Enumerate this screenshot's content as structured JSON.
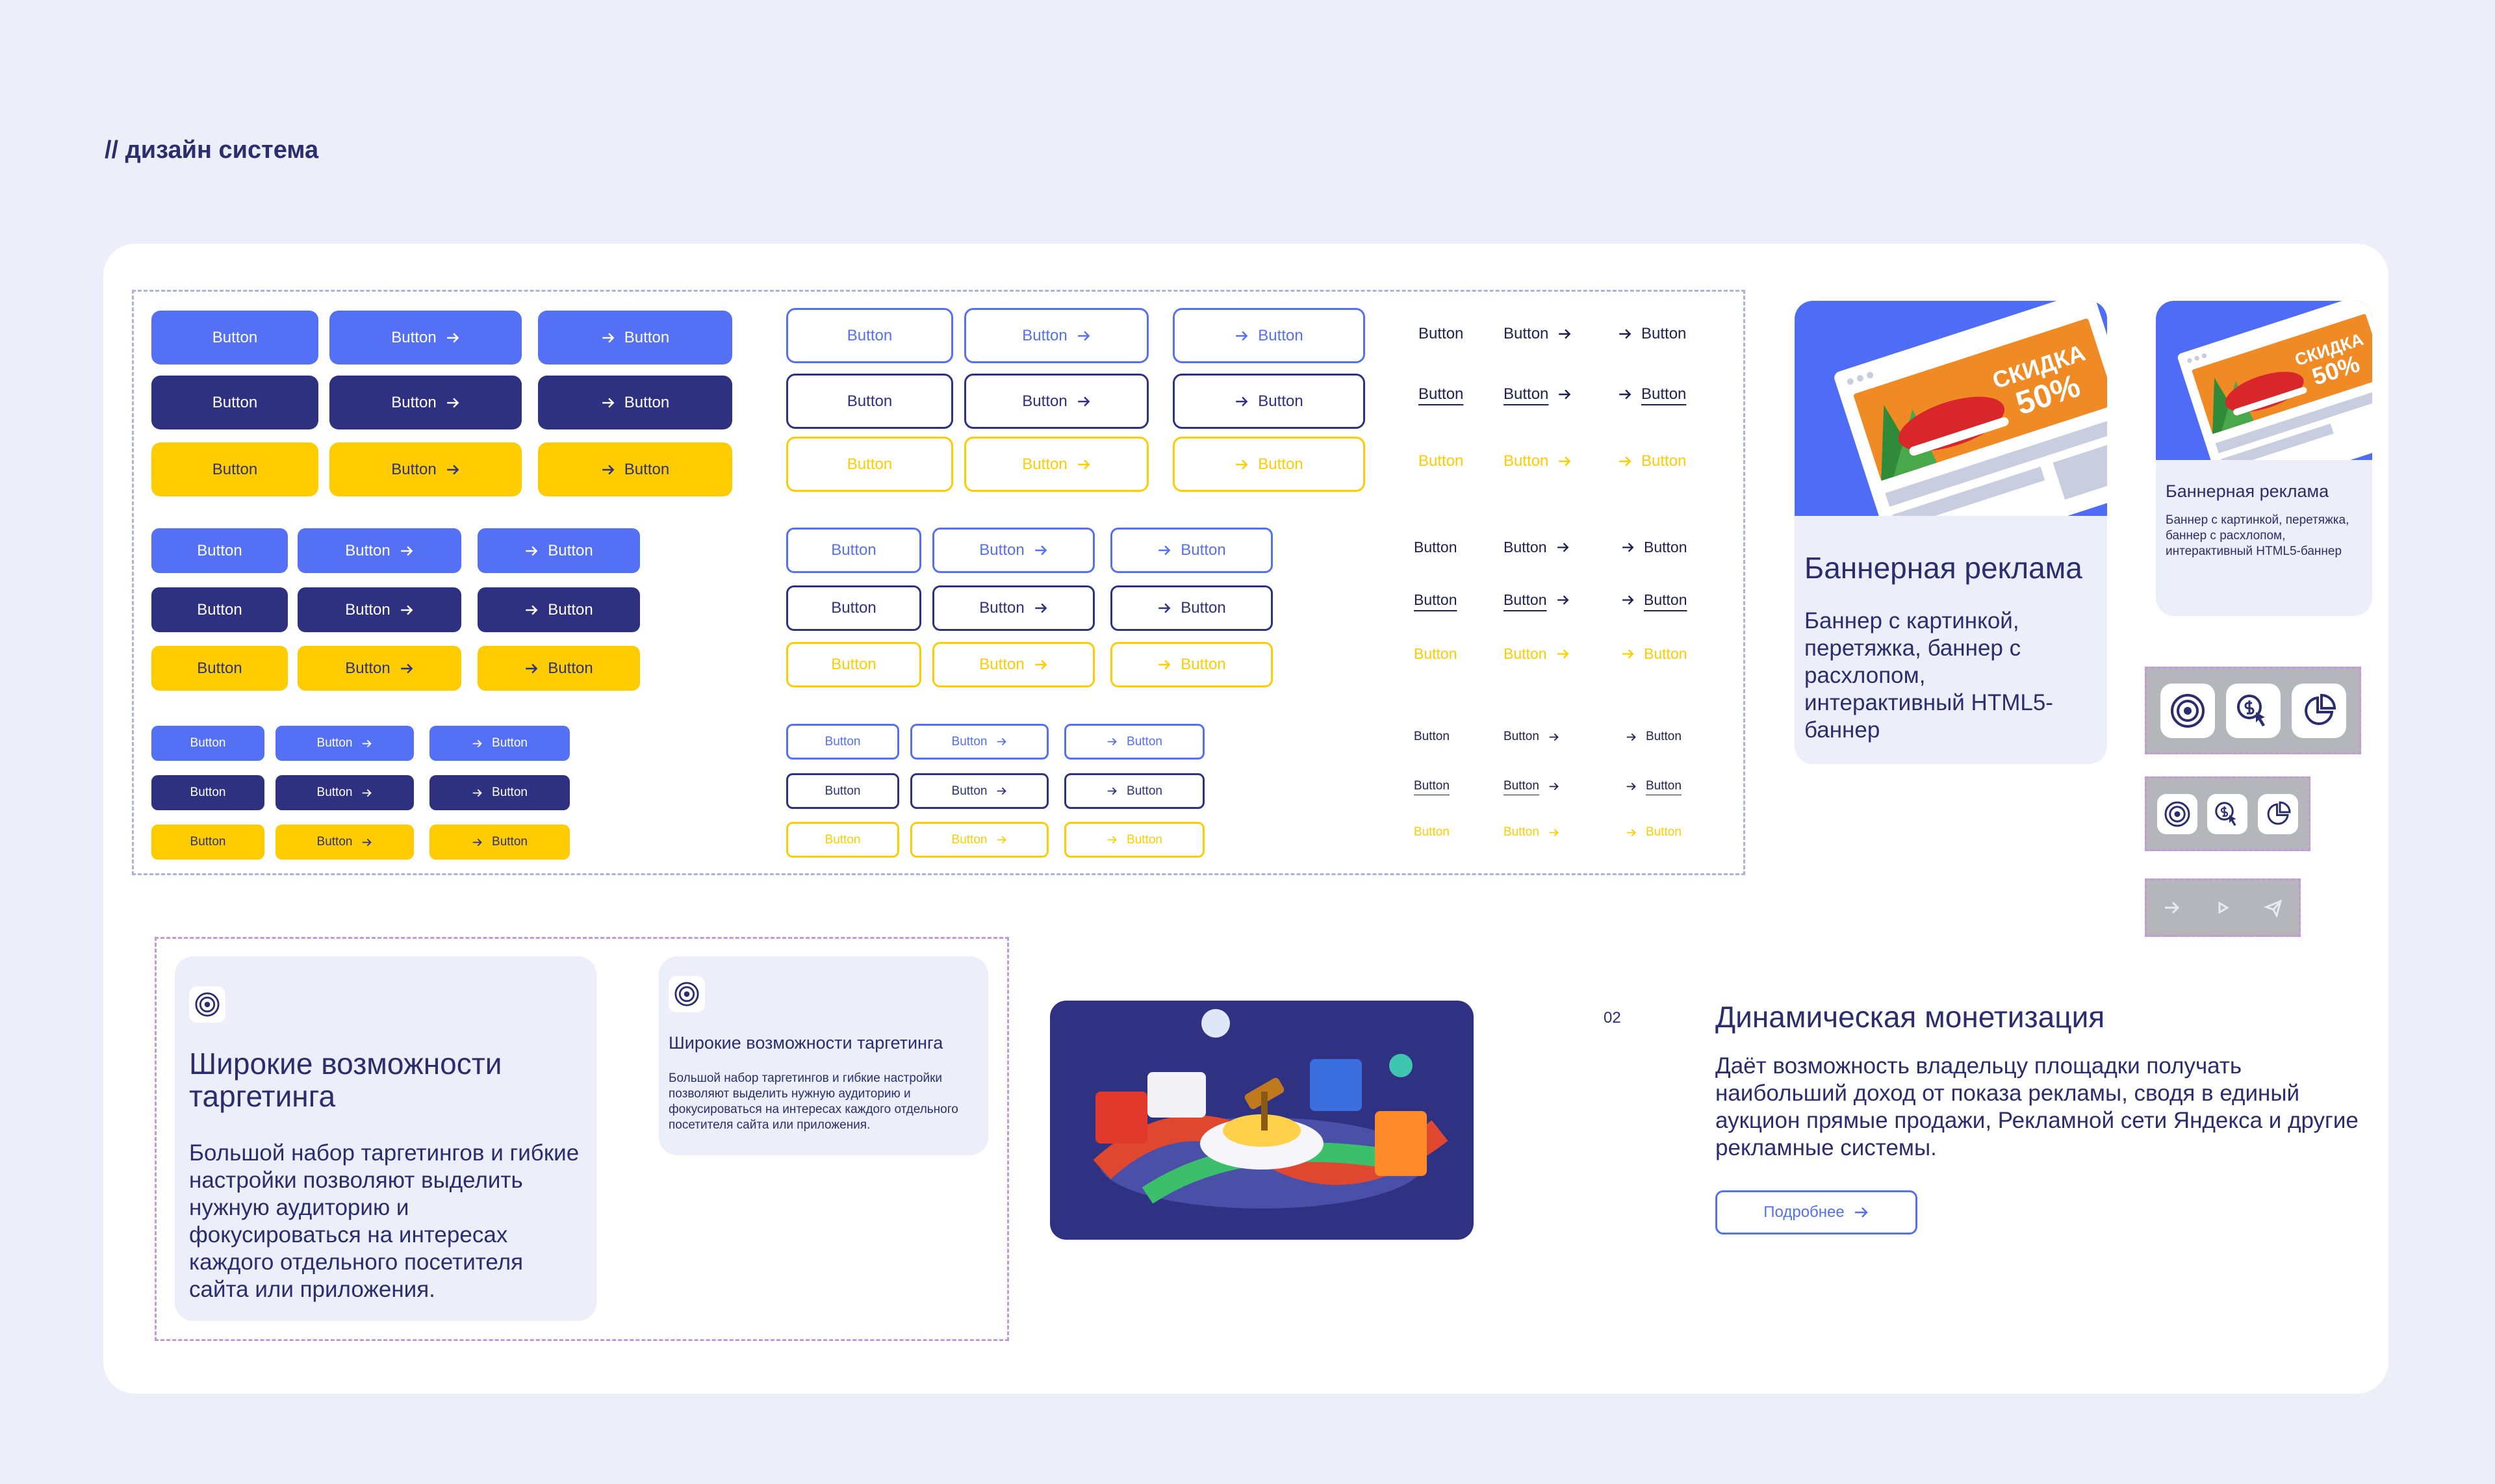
{
  "header": {
    "title": "// дизайн система"
  },
  "button_groups": [
    [
      [
        "Button",
        "Button",
        "Button"
      ],
      [
        "Button",
        "Button",
        "Button"
      ],
      [
        "Button",
        "Button",
        "Button"
      ]
    ],
    [
      [
        "Button",
        "Button",
        "Button"
      ],
      [
        "Button",
        "Button",
        "Button"
      ],
      [
        "Button",
        "Button",
        "Button"
      ]
    ],
    [
      [
        "Button",
        "Button",
        "Button"
      ],
      [
        "Button",
        "Button",
        "Button"
      ],
      [
        "Button",
        "Button",
        "Button"
      ]
    ],
    [
      [
        "Button",
        "Button",
        "Button"
      ],
      [
        "Button",
        "Button",
        "Button"
      ],
      [
        "Button",
        "Button",
        "Button"
      ]
    ],
    [
      [
        "Button",
        "Button",
        "Button"
      ],
      [
        "Button",
        "Button",
        "Button"
      ],
      [
        "Button",
        "Button",
        "Button"
      ]
    ],
    [
      [
        "Button",
        "Button",
        "Button"
      ],
      [
        "Button",
        "Button",
        "Button"
      ],
      [
        "Button",
        "Button",
        "Button"
      ]
    ],
    [
      [
        "Button",
        "Button",
        "Button"
      ],
      [
        "Button",
        "Button",
        "Button"
      ],
      [
        "Button",
        "Button",
        "Button"
      ]
    ],
    [
      [
        "Button",
        "Button",
        "Button"
      ],
      [
        "Button",
        "Button",
        "Button"
      ],
      [
        "Button",
        "Button",
        "Button"
      ]
    ],
    [
      [
        "Button",
        "Button",
        "Button"
      ],
      [
        "Button",
        "Button",
        "Button"
      ],
      [
        "Button",
        "Button",
        "Button"
      ]
    ]
  ],
  "banner_card": {
    "image": {
      "badge": "СКИДКА",
      "discount": "50%"
    },
    "title": "Баннерная реклама",
    "text": "Баннер с картинкой, перетяжка, баннер с расхлопом, интерактивный HTML5-баннер"
  },
  "banner_card_small": {
    "image": {
      "badge": "СКИДКА",
      "discount": "50%"
    },
    "title": "Баннерная реклама",
    "text": "Баннер с картинкой, перетяжка, баннер с расхлопом, интерактивный HTML5-баннер"
  },
  "targeting_card": {
    "title": "Широкие возможности таргетинга",
    "text": "Большой набор таргетингов и гибкие настройки позволяют выделить нужную аудиторию и фокусироваться на интересах каждого отдельного посетителя сайта или приложения."
  },
  "targeting_card_small": {
    "title": "Широкие возможности таргетинга",
    "text": "Большой набор таргетингов и гибкие настройки позволяют выделить нужную аудиторию и фокусироваться на интересах каждого отдельного посетителя сайта или приложения."
  },
  "monetization": {
    "number": "02",
    "title": "Динамическая монетизация",
    "text": "Даёт возможность владельцу площадки получать наибольший доход от показа рекламы, сводя в единый аукцион прямые продажи, Рекламной сети Яндекса и другие рекламные системы.",
    "button": "Подробнее"
  }
}
